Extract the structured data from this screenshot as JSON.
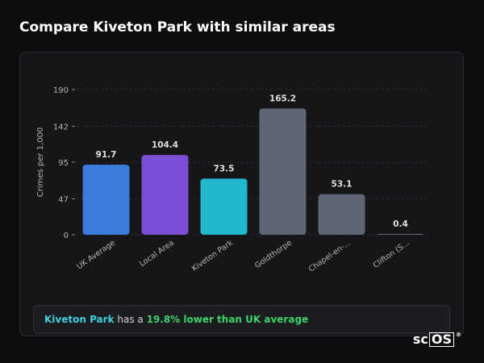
{
  "page": {
    "title": "Compare Kiveton Park with similar areas"
  },
  "summary": {
    "area": "Kiveton Park",
    "middle": " has a ",
    "stat": "19.8% lower than UK average"
  },
  "logo": {
    "sc": "sc",
    "os": "OS",
    "reg": "®"
  },
  "colors": {
    "uk_average": "#3b7ddd",
    "local_area": "#7a4fd6",
    "kiveton_park": "#21b7cf",
    "other_areas": "#5e6675"
  },
  "chart_data": {
    "type": "bar",
    "ylabel": "Crimes per 1,000",
    "xlabel": "",
    "ylim": [
      0,
      190
    ],
    "yticks": [
      0,
      47,
      95,
      142,
      190
    ],
    "grid": true,
    "categories": [
      "UK Average",
      "Local Area",
      "Kiveton Park",
      "Goldthorpe",
      "Chapel-en-...",
      "Clifton (S..."
    ],
    "values": [
      91.7,
      104.4,
      73.5,
      165.2,
      53.1,
      0.4
    ],
    "value_labels": [
      "91.7",
      "104.4",
      "73.5",
      "165.2",
      "53.1",
      "0.4"
    ],
    "bar_colors": [
      "#3b7ddd",
      "#7a4fd6",
      "#21b7cf",
      "#5e6675",
      "#5e6675",
      "#5e6675"
    ]
  }
}
